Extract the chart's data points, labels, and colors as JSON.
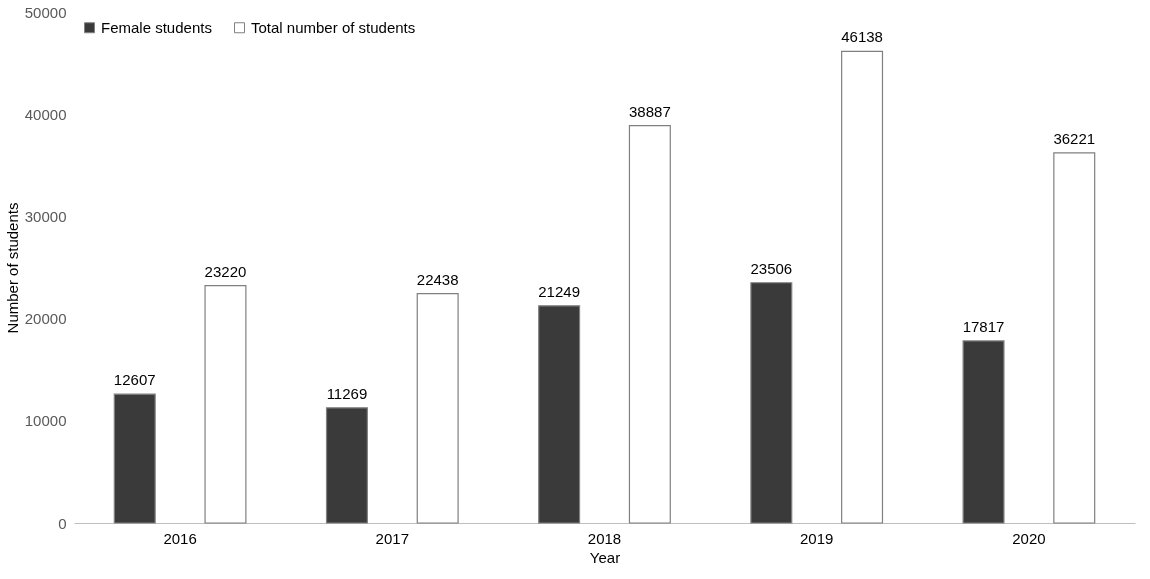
{
  "chart_data": {
    "type": "bar",
    "xlabel": "Year",
    "ylabel": "Number of students",
    "categories": [
      "2016",
      "2017",
      "2018",
      "2019",
      "2020"
    ],
    "series": [
      {
        "name": "Female students",
        "color": "#3a3a3a",
        "values": [
          12607,
          11269,
          21249,
          23506,
          17817
        ]
      },
      {
        "name": "Total number of students",
        "color": "#ffffff",
        "values": [
          23220,
          22438,
          38887,
          46138,
          36221
        ]
      }
    ],
    "ylim": [
      0,
      50000
    ],
    "yticks": [
      0,
      10000,
      20000,
      30000,
      40000,
      50000
    ],
    "grid": false,
    "legend": "top left",
    "data_labels": true
  }
}
